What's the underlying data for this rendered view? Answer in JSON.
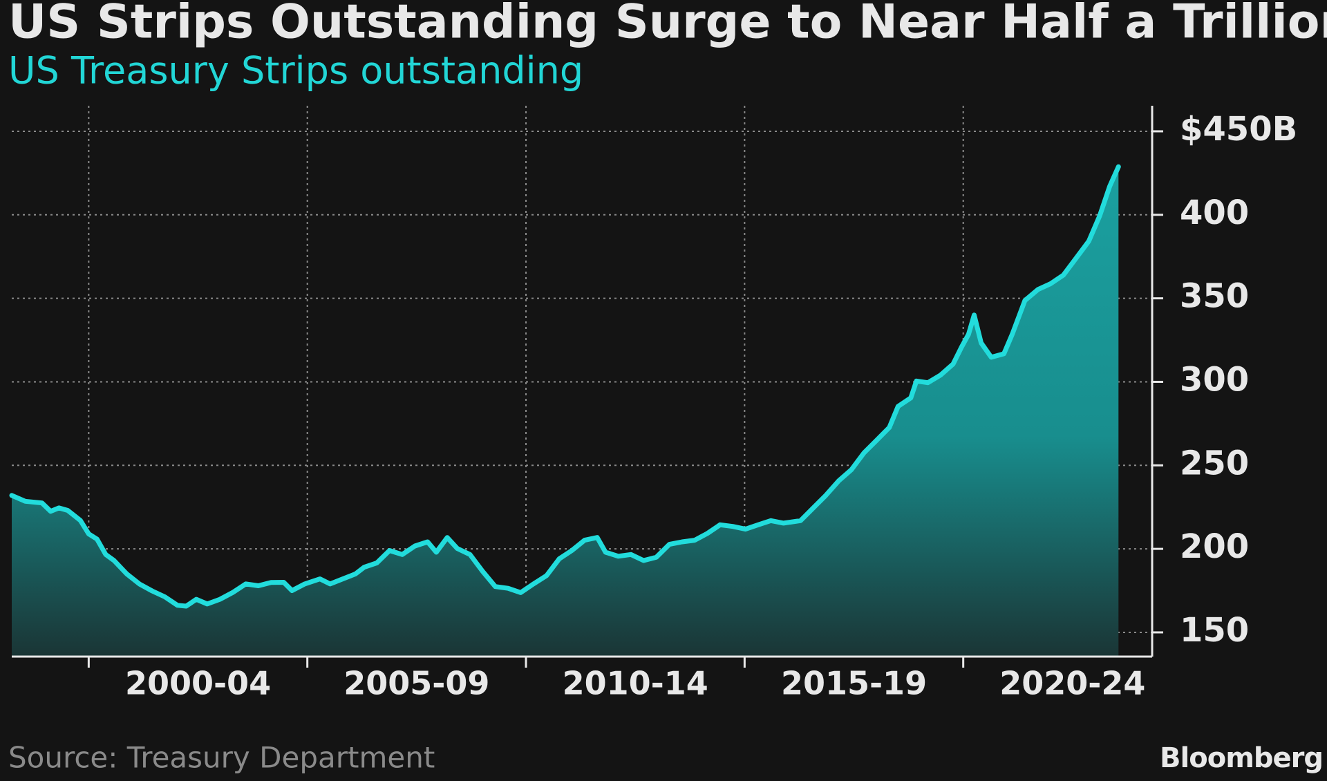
{
  "chart_data": {
    "type": "area",
    "title": "US Strips Outstanding Surge to Near Half a Trillion",
    "subtitle": "US Treasury Strips outstanding",
    "source": "Source: Treasury Department",
    "logo": "Bloomberg",
    "xlim": [
      1998.24,
      2024.32
    ],
    "x_periods": [
      {
        "label": "2000-04",
        "start": 2000,
        "end": 2005
      },
      {
        "label": "2005-09",
        "start": 2005,
        "end": 2010
      },
      {
        "label": "2010-14",
        "start": 2010,
        "end": 2015
      },
      {
        "label": "2015-19",
        "start": 2015,
        "end": 2020
      },
      {
        "label": "2020-24",
        "start": 2020,
        "end": 2025
      }
    ],
    "ylim": [
      135.5,
      465.3
    ],
    "yticks": [
      150,
      200,
      250,
      300,
      350,
      400,
      {
        "value": 450,
        "label": "$450B"
      }
    ],
    "grid": true,
    "x": [
      1998.24,
      1998.55,
      1998.93,
      1999.13,
      1999.32,
      1999.52,
      1999.81,
      2000.0,
      2000.19,
      2000.39,
      2000.58,
      2000.87,
      2001.16,
      2001.45,
      2001.74,
      2002.03,
      2002.23,
      2002.46,
      2002.71,
      2003.0,
      2003.29,
      2003.59,
      2003.88,
      2004.17,
      2004.46,
      2004.65,
      2004.94,
      2005.29,
      2005.52,
      2005.81,
      2006.1,
      2006.3,
      2006.59,
      2006.88,
      2007.17,
      2007.46,
      2007.75,
      2007.95,
      2008.2,
      2008.43,
      2008.72,
      2009.01,
      2009.3,
      2009.59,
      2009.88,
      2010.17,
      2010.47,
      2010.76,
      2011.05,
      2011.34,
      2011.63,
      2011.82,
      2012.11,
      2012.4,
      2012.69,
      2012.98,
      2013.28,
      2013.57,
      2013.86,
      2014.15,
      2014.44,
      2014.73,
      2015.02,
      2015.31,
      2015.6,
      2015.89,
      2016.28,
      2016.57,
      2016.86,
      2017.15,
      2017.44,
      2017.73,
      2018.02,
      2018.31,
      2018.51,
      2018.8,
      2018.93,
      2019.19,
      2019.48,
      2019.77,
      2019.96,
      2020.12,
      2020.25,
      2020.41,
      2020.64,
      2020.93,
      2021.12,
      2021.41,
      2021.71,
      2022.0,
      2022.29,
      2022.58,
      2022.87,
      2023.12,
      2023.35,
      2023.55
    ],
    "series": [
      {
        "name": "US Treasury Strips outstanding",
        "color": "#22dcdc",
        "values": [
          232,
          228.5,
          227.5,
          222.5,
          224.5,
          223,
          217,
          209,
          205.8,
          196.6,
          193,
          185,
          179,
          174.8,
          171.3,
          166.2,
          165.7,
          169.8,
          167,
          169.8,
          173.8,
          179,
          177.9,
          179.9,
          180,
          175,
          179,
          182,
          179,
          182,
          185,
          189,
          191.6,
          199,
          196.6,
          201.7,
          204.2,
          198,
          206.8,
          200.2,
          196.6,
          186.5,
          177.4,
          176.4,
          173.8,
          179,
          184,
          194,
          199,
          205.2,
          206.8,
          198,
          195.6,
          196.6,
          193,
          195,
          202.7,
          204.2,
          205.2,
          209.3,
          214.4,
          213.4,
          211.8,
          214.4,
          216.9,
          215.4,
          216.9,
          224.5,
          232.1,
          240.7,
          247.3,
          257.5,
          265,
          272.7,
          285.3,
          290.4,
          300.5,
          299.5,
          304,
          310.7,
          320.8,
          328.4,
          340,
          323.3,
          314.7,
          316.8,
          328.4,
          348.7,
          355.3,
          358.8,
          363.9,
          374,
          384.2,
          399.4,
          417.1,
          428.8
        ]
      }
    ]
  }
}
